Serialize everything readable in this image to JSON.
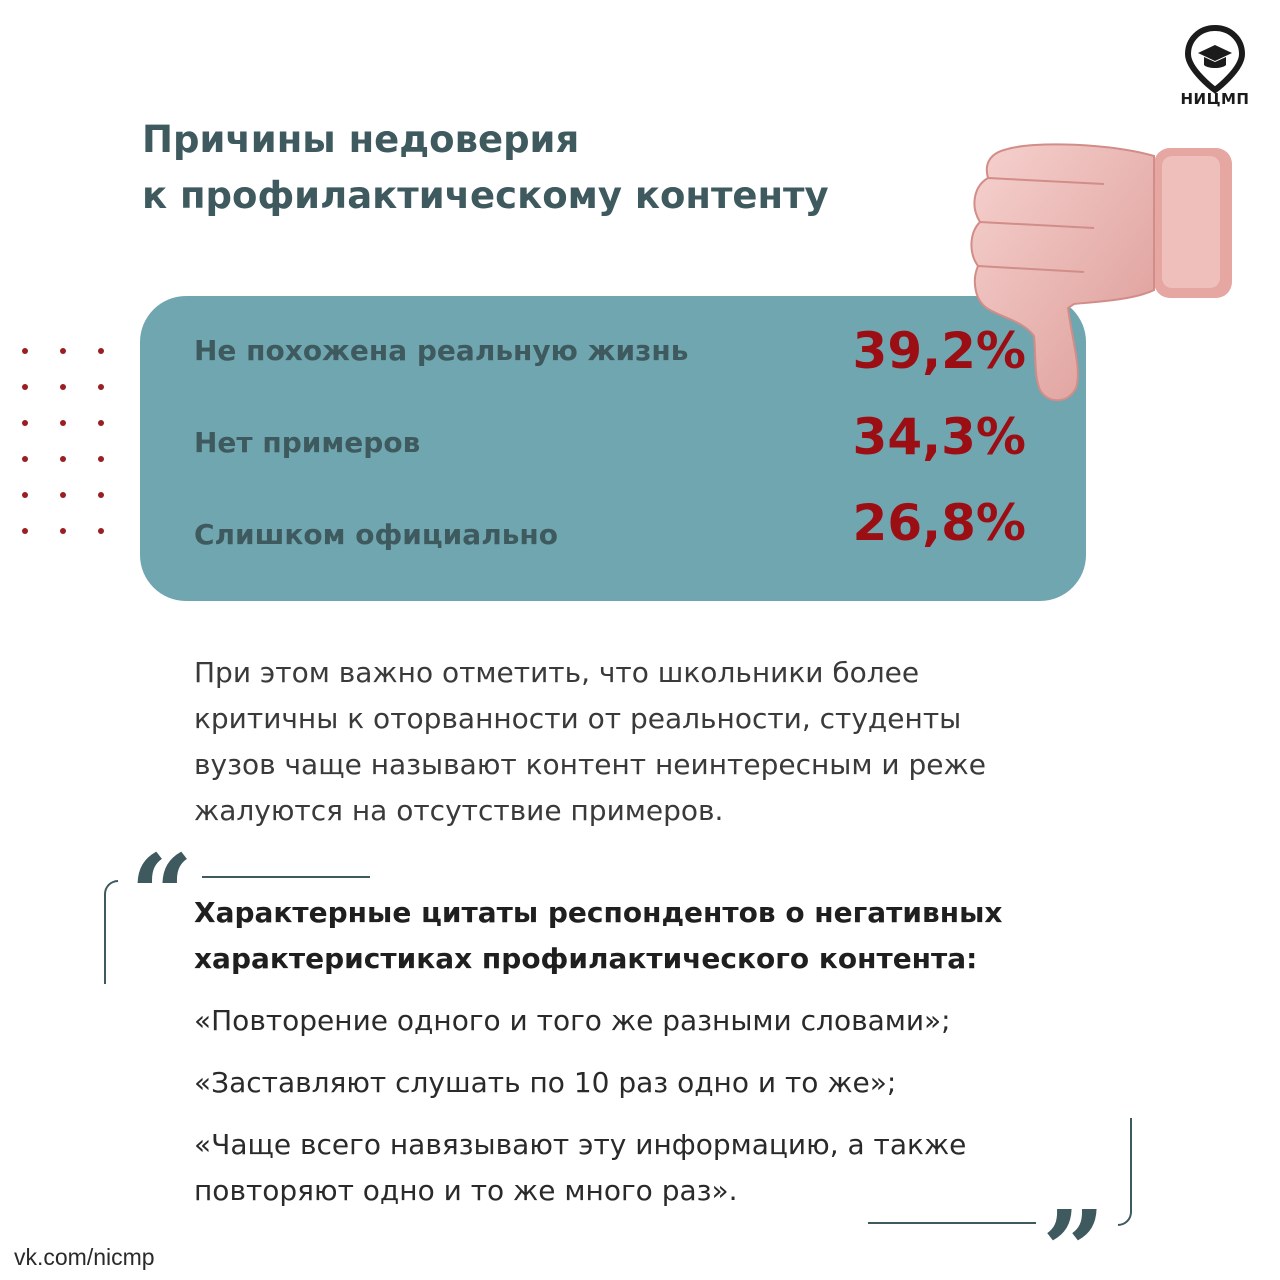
{
  "logo": {
    "text": "НИЦМП",
    "icon": "graduation-cap-pin-icon"
  },
  "title": {
    "line1": "Причины недоверия",
    "line2": "к профилактическому контенту"
  },
  "stats": [
    {
      "label": "Не похожена реальную жизнь",
      "value": "39,2%"
    },
    {
      "label": "Нет примеров",
      "value": "34,3%"
    },
    {
      "label": "Слишком официально",
      "value": "26,8%"
    }
  ],
  "paragraph": {
    "lines": [
      "При этом важно отметить, что школьники более",
      "критичны к оторванности от реальности, студенты",
      "вузов чаще называют контент неинтересным и реже",
      "жалуются на отсутствие примеров."
    ]
  },
  "quotes": {
    "open_mark": "“",
    "close_mark": "”",
    "heading_line1": "Характерные цитаты респондентов о негативных",
    "heading_line2": "характеристиках профилактического контента:",
    "q1": "«Повторение одного и того же разными словами»;",
    "q2": "«Заставляют слушать по 10 раз одно и то же»;",
    "q3_line1": "«Чаще всего навязывают эту информацию, а также",
    "q3_line2": "повторяют одно и то же много раз»."
  },
  "footer": {
    "link": "vk.com/nicmp"
  },
  "colors": {
    "accent_red": "#9b0f14",
    "panel": "#6fa6b0",
    "title": "#3e5a5e",
    "thumb": "#eab0ac"
  }
}
